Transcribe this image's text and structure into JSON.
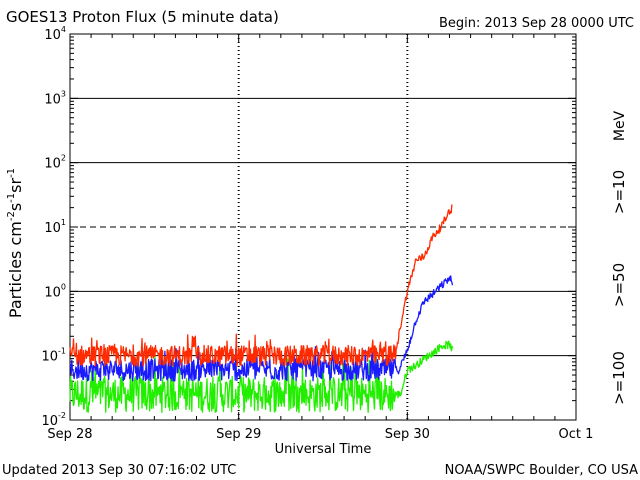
{
  "chart_data": {
    "type": "line",
    "title": "GOES13 Proton Flux (5 minute data)",
    "begin_label": "Begin: 2013 Sep 28 0000 UTC",
    "xlabel": "Universal Time",
    "ylabel": "Particles cm^-2 s^-1 sr^-1",
    "ylabel_parts": {
      "base": "Particles cm",
      "e1": "-2",
      "s": "s",
      "e2": "-1",
      "sr": "sr",
      "e3": "-1"
    },
    "y_scale": "log",
    "ylim_exponents": [
      -2,
      4
    ],
    "y_tick_labels": [
      {
        "base": "10",
        "exp": "4"
      },
      {
        "base": "10",
        "exp": "3"
      },
      {
        "base": "10",
        "exp": "2"
      },
      {
        "base": "10",
        "exp": "1"
      },
      {
        "base": "10",
        "exp": "0"
      },
      {
        "base": "10",
        "exp": "-1"
      },
      {
        "base": "10",
        "exp": "-2"
      }
    ],
    "x_range_days": [
      0,
      3
    ],
    "x_tick_labels": [
      "Sep 28",
      "Sep 29",
      "Sep 30",
      "Oct 1"
    ],
    "dashed_horizontal_level": 10,
    "day_boundary_days": [
      1,
      2
    ],
    "units_label": "MeV",
    "series": [
      {
        "name": ">=10",
        "color": "#ff2a00",
        "baseline_log10": -1.0,
        "baseline_jitter_log10": 0.16,
        "points": [
          [
            0.0,
            0.1
          ],
          [
            0.5,
            0.1
          ],
          [
            1.0,
            0.1
          ],
          [
            1.5,
            0.1
          ],
          [
            1.93,
            0.1
          ],
          [
            1.96,
            0.3
          ],
          [
            2.0,
            1.0
          ],
          [
            2.05,
            3.0
          ],
          [
            2.1,
            3.5
          ],
          [
            2.15,
            7.0
          ],
          [
            2.2,
            10.0
          ],
          [
            2.25,
            18.0
          ],
          [
            2.27,
            20.0
          ]
        ]
      },
      {
        "name": ">=50",
        "color": "#1a1aff",
        "baseline_log10": -1.25,
        "baseline_jitter_log10": 0.17,
        "points": [
          [
            0.0,
            0.06
          ],
          [
            0.5,
            0.06
          ],
          [
            1.0,
            0.06
          ],
          [
            1.5,
            0.06
          ],
          [
            1.95,
            0.06
          ],
          [
            2.0,
            0.12
          ],
          [
            2.05,
            0.35
          ],
          [
            2.1,
            0.7
          ],
          [
            2.15,
            0.9
          ],
          [
            2.2,
            1.2
          ],
          [
            2.25,
            1.6
          ],
          [
            2.27,
            1.4
          ]
        ]
      },
      {
        "name": ">=100",
        "color": "#22ee00",
        "baseline_log10": -1.6,
        "baseline_jitter_log10": 0.28,
        "points": [
          [
            0.0,
            0.025
          ],
          [
            0.5,
            0.025
          ],
          [
            1.0,
            0.025
          ],
          [
            1.5,
            0.025
          ],
          [
            1.96,
            0.025
          ],
          [
            2.0,
            0.06
          ],
          [
            2.05,
            0.07
          ],
          [
            2.1,
            0.09
          ],
          [
            2.15,
            0.11
          ],
          [
            2.2,
            0.14
          ],
          [
            2.25,
            0.15
          ],
          [
            2.27,
            0.12
          ]
        ]
      }
    ]
  },
  "footer": {
    "updated": "Updated 2013 Sep 30 07:16:02 UTC",
    "credit": "NOAA/SWPC Boulder, CO USA"
  }
}
